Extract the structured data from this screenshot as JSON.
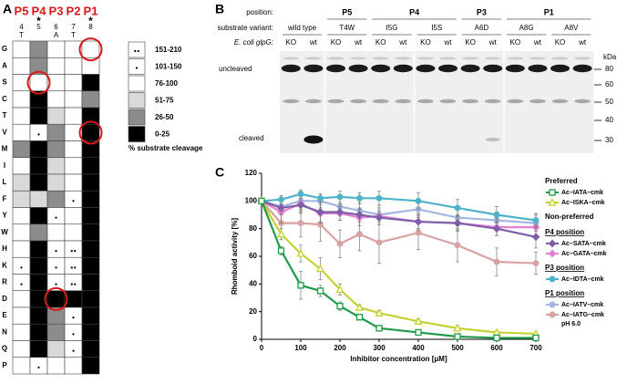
{
  "chart_data": [
    {
      "type": "heatmap",
      "label": "A",
      "positions": [
        "P5",
        "P4",
        "P3",
        "P2",
        "P1"
      ],
      "position_numbers": [
        4,
        5,
        6,
        7,
        8
      ],
      "residues": [
        "T",
        null,
        "A",
        "T",
        null
      ],
      "star": "*",
      "star_columns": [
        1,
        4
      ],
      "rows": [
        "G",
        "A",
        "S",
        "C",
        "T",
        "V",
        "M",
        "I",
        "L",
        "F",
        "Y",
        "W",
        "H",
        "K",
        "R",
        "D",
        "E",
        "N",
        "Q",
        "P"
      ],
      "cells": [
        [
          2,
          4,
          2,
          2,
          2
        ],
        [
          2,
          4,
          2,
          2,
          2
        ],
        [
          2,
          2,
          2,
          2,
          5
        ],
        [
          2,
          5,
          2,
          2,
          4
        ],
        [
          2,
          5,
          3,
          2,
          5
        ],
        [
          2,
          1,
          4,
          2,
          5
        ],
        [
          4,
          5,
          4,
          2,
          5
        ],
        [
          2,
          5,
          3,
          2,
          5
        ],
        [
          3,
          5,
          3,
          2,
          5
        ],
        [
          3,
          3,
          4,
          1,
          5
        ],
        [
          2,
          5,
          1,
          2,
          5
        ],
        [
          2,
          4,
          2,
          2,
          5
        ],
        [
          2,
          5,
          1,
          0,
          5
        ],
        [
          1,
          5,
          1,
          0,
          5
        ],
        [
          1,
          5,
          1,
          0,
          5
        ],
        [
          2,
          5,
          5,
          5,
          5
        ],
        [
          2,
          5,
          4,
          1,
          5
        ],
        [
          2,
          5,
          4,
          1,
          5
        ],
        [
          2,
          5,
          3,
          1,
          5
        ],
        [
          2,
          1,
          2,
          2,
          5
        ]
      ],
      "circled": [
        [
          0,
          4
        ],
        [
          2,
          1
        ],
        [
          5,
          4
        ],
        [
          15,
          2
        ]
      ],
      "legend": {
        "labels": [
          "151-210",
          "101-150",
          "76-100",
          "51-75",
          "26-50",
          "0-25"
        ],
        "colors": [
          "#ffffff",
          "#ffffff",
          "#ffffff",
          "#d9d9d9",
          "#8c8c8c",
          "#000000"
        ],
        "dots": [
          2,
          1,
          0,
          0,
          0,
          0
        ]
      },
      "legend_title": "% substrate cleavage"
    },
    {
      "type": "line",
      "label": "C",
      "x_label": "Inhibitor concentration [μM]",
      "y_label": "Rhomboid activity [%]",
      "x": [
        0,
        50,
        100,
        150,
        200,
        250,
        300,
        400,
        500,
        600,
        700
      ],
      "xlim": [
        0,
        700
      ],
      "xticks": [
        0,
        100,
        200,
        300,
        400,
        500,
        600,
        700
      ],
      "ylim": [
        0,
        120
      ],
      "yticks": [
        0,
        20,
        40,
        60,
        80,
        100,
        120
      ],
      "series": [
        {
          "name": "Ac–IATA–cmk",
          "color": "#1f9a48",
          "marker": "square",
          "values": [
            100,
            64,
            39,
            35,
            24,
            16,
            8,
            5,
            2,
            1,
            1
          ],
          "errors": [
            0,
            3,
            10,
            4,
            3,
            2,
            1,
            2,
            2,
            1,
            1
          ]
        },
        {
          "name": "Ac–ISKA–cmk",
          "color": "#c5d130",
          "marker": "triangle",
          "values": [
            100,
            76,
            62,
            51,
            36,
            23,
            19,
            13,
            8,
            5,
            4
          ],
          "errors": [
            0,
            4,
            6,
            8,
            4,
            2,
            2,
            2,
            2,
            1,
            1
          ]
        },
        {
          "name": "Ac–SATA–cmk",
          "color": "#7d5fa8",
          "marker": "diamond",
          "values": [
            100,
            95,
            97,
            92,
            92,
            90,
            88,
            85,
            84,
            80,
            74
          ],
          "errors": [
            0,
            5,
            6,
            8,
            6,
            5,
            5,
            5,
            5,
            5,
            8
          ]
        },
        {
          "name": "Ac–GATA–cmk",
          "color": "#e47fd3",
          "marker": "diamond",
          "values": [
            100,
            92,
            98,
            91,
            91,
            88,
            89,
            85,
            84,
            81,
            81
          ],
          "errors": [
            0,
            8,
            6,
            6,
            5,
            6,
            6,
            6,
            6,
            6,
            6
          ]
        },
        {
          "name": "Ac–IDTA–cmk",
          "color": "#4fb2c8",
          "marker": "circle",
          "values": [
            100,
            101,
            105,
            102,
            103,
            102,
            102,
            100,
            95,
            90,
            86
          ],
          "errors": [
            0,
            3,
            3,
            3,
            4,
            4,
            5,
            6,
            6,
            6,
            5
          ]
        },
        {
          "name": "Ac–IATV–cmk",
          "color": "#a3b5e0",
          "marker": "circle",
          "values": [
            100,
            96,
            100,
            100,
            96,
            93,
            90,
            94,
            88,
            86,
            84
          ],
          "errors": [
            0,
            6,
            7,
            5,
            6,
            6,
            7,
            6,
            6,
            6,
            6
          ]
        },
        {
          "name": "Ac–IATG–cmk",
          "note": "pH 6.0",
          "color": "#d8a2a2",
          "marker": "circle",
          "values": [
            100,
            84,
            84,
            83,
            69,
            76,
            70,
            77,
            68,
            56,
            55
          ],
          "errors": [
            0,
            10,
            10,
            12,
            10,
            12,
            15,
            12,
            12,
            10,
            8
          ]
        }
      ],
      "legend_groups": [
        {
          "title": "Preferred",
          "series": [
            0,
            1
          ]
        },
        {
          "title": "Non-preferred"
        },
        {
          "title": "P4 position",
          "series": [
            2,
            3
          ]
        },
        {
          "title": "P3 position",
          "series": [
            4
          ]
        },
        {
          "title": "P1 position",
          "series": [
            5,
            6
          ]
        }
      ]
    }
  ],
  "gel": {
    "label": "B",
    "position_label": "position:",
    "variant_label": "substrate variant:",
    "strain_label": "E. coli glpG:",
    "variants": [
      "wild type",
      "T4W",
      "I5G",
      "I5S",
      "A6D",
      "A8G",
      "A8V"
    ],
    "positions": [
      {
        "name": "P5",
        "variants": [
          1,
          1
        ]
      },
      {
        "name": "P4",
        "variants": [
          2,
          3
        ]
      },
      {
        "name": "P3",
        "variants": [
          4,
          4
        ]
      },
      {
        "name": "P1",
        "variants": [
          5,
          6
        ]
      }
    ],
    "lanes": [
      "KO",
      "wt",
      "KO",
      "wt",
      "KO",
      "wt",
      "KO",
      "wt",
      "KO",
      "wt",
      "KO",
      "wt",
      "KO",
      "wt"
    ],
    "uncleaved_label": "uncleaved",
    "cleaved_label": "cleaved",
    "kda_label": "kDa",
    "markers": [
      80,
      60,
      50,
      40,
      30
    ]
  }
}
